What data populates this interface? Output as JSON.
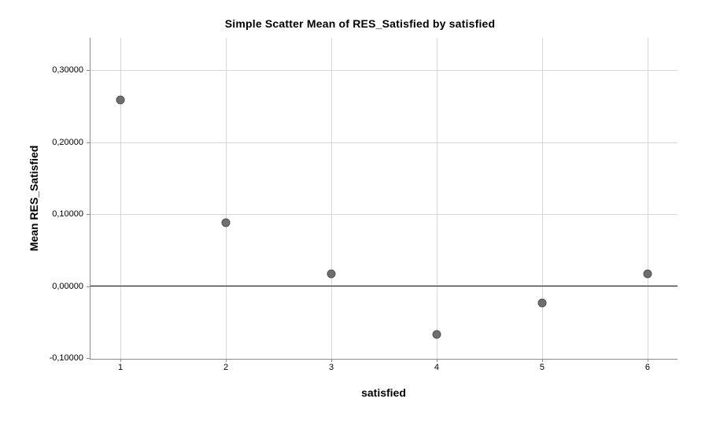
{
  "colors": {
    "background": "#ffffff",
    "text": "#000000",
    "gridline": "#d6d6d6",
    "axis": "#8c8c8c",
    "zero_line": "#000000",
    "point_fill": "#6e6e6e",
    "point_stroke": "#515151"
  },
  "chart_data": {
    "type": "scatter",
    "title": "Simple Scatter Mean of RES_Satisfied by satisfied",
    "xlabel": "satisfied",
    "ylabel": "Mean RES_Satisfied",
    "x": [
      1,
      2,
      3,
      4,
      5,
      6
    ],
    "y": [
      0.259,
      0.088,
      0.017,
      -0.067,
      -0.023,
      0.017
    ],
    "xlim": [
      0.716,
      6.284
    ],
    "ylim": [
      -0.101,
      0.345
    ],
    "x_ticks": [
      {
        "v": 1,
        "label": "1"
      },
      {
        "v": 2,
        "label": "2"
      },
      {
        "v": 3,
        "label": "3"
      },
      {
        "v": 4,
        "label": "4"
      },
      {
        "v": 5,
        "label": "5"
      },
      {
        "v": 6,
        "label": "6"
      }
    ],
    "y_ticks": [
      {
        "v": 0.3,
        "label": "0,30000",
        "grid": true
      },
      {
        "v": 0.2,
        "label": "0,20000",
        "grid": true
      },
      {
        "v": 0.1,
        "label": "0,10000",
        "grid": true
      },
      {
        "v": 0.0,
        "label": "0,00000",
        "grid": false
      },
      {
        "v": -0.1,
        "label": "-0,10000",
        "grid": false
      }
    ],
    "ref_line_y": 0,
    "grid": true,
    "legend": false
  }
}
